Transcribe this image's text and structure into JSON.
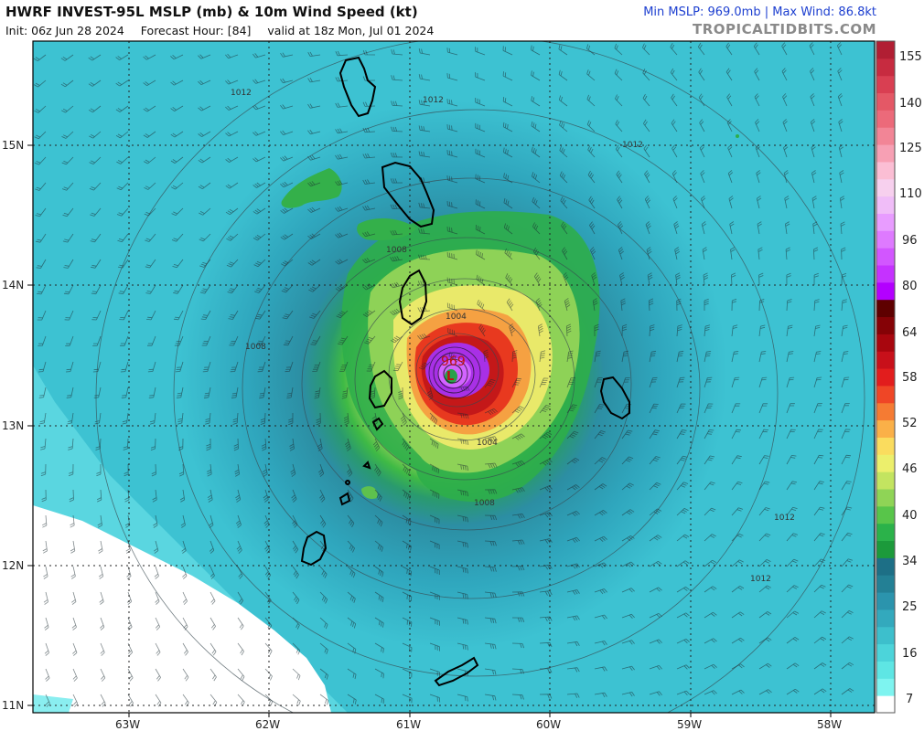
{
  "header": {
    "title": "HWRF INVEST-95L MSLP (mb) & 10m Wind Speed (kt)",
    "init": "Init: 06z Jun 28 2024",
    "forecast_hour": "Forecast Hour: [84]",
    "valid": "valid at 18z Mon, Jul 01 2024",
    "stats": "Min MSLP: 969.0mb | Max Wind: 86.8kt",
    "site": "TROPICALTIDBITS.COM"
  },
  "map": {
    "lat_labels": [
      "15N",
      "14N",
      "13N",
      "12N",
      "11N"
    ],
    "lon_labels": [
      "63W",
      "62W",
      "61W",
      "60W",
      "59W",
      "58W"
    ],
    "isobar_labels": [
      "1012",
      "1012",
      "1012",
      "1008",
      "1008",
      "1004",
      "1004",
      "1008",
      "1012",
      "1012"
    ],
    "center_pressure": "969",
    "low_marker": "L"
  },
  "colorbar": {
    "labels": [
      "155",
      "140",
      "125",
      "110",
      "96",
      "80",
      "64",
      "58",
      "52",
      "46",
      "40",
      "34",
      "25",
      "16",
      "7"
    ],
    "colors": [
      "#ffffff",
      "#7ef4f0",
      "#5ee6e4",
      "#4cd4da",
      "#3dbfcc",
      "#33a9bd",
      "#2b94ad",
      "#238095",
      "#1d6f86",
      "#1c9a3b",
      "#2bb24a",
      "#58c54a",
      "#8fd456",
      "#c3e460",
      "#ecef6c",
      "#fadc5e",
      "#fab048",
      "#f57b33",
      "#ef4626",
      "#e21d1d",
      "#c8101a",
      "#a8060e",
      "#850206",
      "#5e0000",
      "#b300ff",
      "#c532ff",
      "#d256ff",
      "#de7aff",
      "#e89cff",
      "#f0bdf8",
      "#f7d0ee",
      "#fbbed4",
      "#f7a0b4",
      "#f28596",
      "#ec6a7a",
      "#e45866",
      "#d93f52",
      "#c72b40",
      "#b11e33"
    ]
  },
  "chart_data": {
    "type": "map",
    "title": "HWRF INVEST-95L MSLP (mb) & 10m Wind Speed (kt)",
    "min_mslp_mb": 969.0,
    "max_wind_kt": 86.8,
    "forecast_hour": 84,
    "storm_center": {
      "lat": 13.35,
      "lon": -60.7
    },
    "lat_range": [
      11,
      15.7
    ],
    "lon_range": [
      -63.7,
      -57.7
    ],
    "colorbar_ticks_kt": [
      7,
      16,
      25,
      34,
      40,
      46,
      52,
      58,
      64,
      80,
      96,
      110,
      125,
      140,
      155
    ]
  }
}
